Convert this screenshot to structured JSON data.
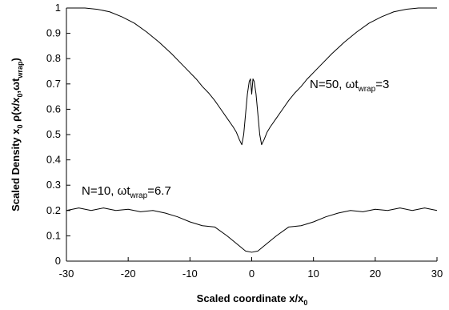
{
  "chart_data": {
    "type": "line",
    "xlabel": "Scaled coordinate x/x",
    "xlabel_sub": "0",
    "ylabel_parts": [
      "Scaled Density  x",
      "0",
      " ρ(x/x",
      "0",
      ",ωt",
      "wrap",
      ")"
    ],
    "xlim": [
      -30,
      30
    ],
    "ylim": [
      0,
      1
    ],
    "x_ticks": [
      -30,
      -20,
      -10,
      0,
      10,
      20,
      30
    ],
    "y_ticks": [
      0,
      0.1,
      0.2,
      0.3,
      0.4,
      0.5,
      0.6,
      0.7,
      0.8,
      0.9,
      1
    ],
    "x_tick_labels": [
      "-30",
      "-20",
      "-10",
      "0",
      "10",
      "20",
      "30"
    ],
    "y_tick_labels": [
      "0",
      "0.1",
      "0.2",
      "0.3",
      "0.4",
      "0.5",
      "0.6",
      "0.7",
      "0.8",
      "0.9",
      "1"
    ],
    "grid": false,
    "series": [
      {
        "annotation": {
          "main": "N=50, ωt",
          "sub": "wrap",
          "tail": "=3"
        },
        "points": [
          [
            -30,
            1.0
          ],
          [
            -27,
            1.0
          ],
          [
            -25,
            0.995
          ],
          [
            -23,
            0.985
          ],
          [
            -21,
            0.965
          ],
          [
            -19,
            0.94
          ],
          [
            -17,
            0.905
          ],
          [
            -15,
            0.865
          ],
          [
            -13,
            0.82
          ],
          [
            -11,
            0.77
          ],
          [
            -9,
            0.72
          ],
          [
            -8,
            0.69
          ],
          [
            -7,
            0.665
          ],
          [
            -6,
            0.635
          ],
          [
            -5,
            0.6
          ],
          [
            -4,
            0.565
          ],
          [
            -3,
            0.53
          ],
          [
            -2.5,
            0.51
          ],
          [
            -2,
            0.48
          ],
          [
            -1.6,
            0.46
          ],
          [
            -1.3,
            0.5
          ],
          [
            -1,
            0.58
          ],
          [
            -0.7,
            0.66
          ],
          [
            -0.4,
            0.71
          ],
          [
            -0.2,
            0.72
          ],
          [
            0,
            0.66
          ],
          [
            0.2,
            0.72
          ],
          [
            0.4,
            0.71
          ],
          [
            0.7,
            0.66
          ],
          [
            1,
            0.58
          ],
          [
            1.3,
            0.5
          ],
          [
            1.6,
            0.46
          ],
          [
            2,
            0.48
          ],
          [
            2.5,
            0.51
          ],
          [
            3,
            0.53
          ],
          [
            4,
            0.565
          ],
          [
            5,
            0.6
          ],
          [
            6,
            0.635
          ],
          [
            7,
            0.665
          ],
          [
            8,
            0.69
          ],
          [
            9,
            0.72
          ],
          [
            11,
            0.77
          ],
          [
            13,
            0.82
          ],
          [
            15,
            0.865
          ],
          [
            17,
            0.905
          ],
          [
            19,
            0.94
          ],
          [
            21,
            0.965
          ],
          [
            23,
            0.985
          ],
          [
            25,
            0.995
          ],
          [
            27,
            1.0
          ],
          [
            30,
            1.0
          ]
        ]
      },
      {
        "annotation": {
          "main": "N=10, ωt",
          "sub": "wrap",
          "tail": "=6.7"
        },
        "points": [
          [
            -30,
            0.2
          ],
          [
            -28,
            0.21
          ],
          [
            -26,
            0.2
          ],
          [
            -24,
            0.21
          ],
          [
            -22,
            0.2
          ],
          [
            -20,
            0.205
          ],
          [
            -18,
            0.195
          ],
          [
            -16,
            0.2
          ],
          [
            -14,
            0.19
          ],
          [
            -12,
            0.175
          ],
          [
            -10,
            0.155
          ],
          [
            -8,
            0.14
          ],
          [
            -6,
            0.135
          ],
          [
            -4,
            0.1
          ],
          [
            -2,
            0.06
          ],
          [
            -1,
            0.04
          ],
          [
            0,
            0.035
          ],
          [
            1,
            0.04
          ],
          [
            2,
            0.06
          ],
          [
            4,
            0.1
          ],
          [
            6,
            0.135
          ],
          [
            8,
            0.14
          ],
          [
            10,
            0.155
          ],
          [
            12,
            0.175
          ],
          [
            14,
            0.19
          ],
          [
            16,
            0.2
          ],
          [
            18,
            0.195
          ],
          [
            20,
            0.205
          ],
          [
            22,
            0.2
          ],
          [
            24,
            0.21
          ],
          [
            26,
            0.2
          ],
          [
            28,
            0.21
          ],
          [
            30,
            0.2
          ]
        ]
      }
    ]
  }
}
